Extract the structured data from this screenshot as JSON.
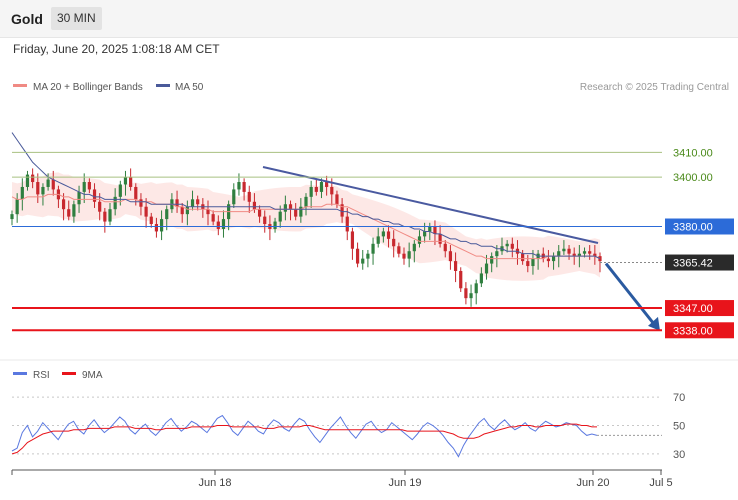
{
  "header": {
    "title": "Gold",
    "timeframe": "30 MIN",
    "datetime": "Friday, June 20, 2025 1:08:18 AM CET"
  },
  "legend": {
    "ma20_label": "MA 20 + Bollinger Bands",
    "ma50_label": "MA 50",
    "research_credit": "Research © 2025 Trading Central",
    "rsi_label": "RSI",
    "rsi_ma_label": "9MA"
  },
  "colors": {
    "candle_up": "#2f7f3f",
    "candle_down": "#c8282e",
    "ma20": "#f08a84",
    "ma50": "#4a5a9a",
    "bands_fill": "#fde4e2",
    "resistance": "#a8c080",
    "pivot": "#2c6bd8",
    "support": "#e8141b",
    "trendline": "#4a5aa0",
    "forecast_arrow": "#2a5aa0",
    "rsi": "#5a78e0",
    "rsi_ma": "#e8141b"
  },
  "chart_data": [
    {
      "type": "candlestick",
      "name": "Gold 30 MIN",
      "ylim": [
        3328,
        3432
      ],
      "x_ticks": [
        "Jun 18",
        "Jun 19",
        "Jun 20",
        "Jul 5"
      ],
      "levels": [
        {
          "label": "3410.00",
          "value": 3410.0,
          "kind": "resistance"
        },
        {
          "label": "3400.00",
          "value": 3400.0,
          "kind": "resistance"
        },
        {
          "label": "3380.00",
          "value": 3380.0,
          "kind": "pivot"
        },
        {
          "label": "3365.42",
          "value": 3365.42,
          "kind": "last_price"
        },
        {
          "label": "3347.00",
          "value": 3347.0,
          "kind": "support"
        },
        {
          "label": "3338.00",
          "value": 3338.0,
          "kind": "support"
        }
      ],
      "close_series": [
        3385,
        3391,
        3396,
        3401,
        3398,
        3393,
        3396,
        3399,
        3395,
        3391,
        3387,
        3384,
        3389,
        3394,
        3398,
        3395,
        3390,
        3386,
        3382,
        3387,
        3392,
        3397,
        3400,
        3396,
        3391,
        3388,
        3384,
        3381,
        3378,
        3383,
        3387,
        3391,
        3388,
        3385,
        3388,
        3391,
        3389,
        3387,
        3385,
        3382,
        3379,
        3383,
        3389,
        3395,
        3398,
        3394,
        3390,
        3387,
        3384,
        3381,
        3379,
        3382,
        3386,
        3389,
        3387,
        3384,
        3388,
        3392,
        3396,
        3394,
        3398,
        3396,
        3393,
        3389,
        3384,
        3378,
        3371,
        3365,
        3367,
        3369,
        3373,
        3376,
        3378,
        3375,
        3372,
        3369,
        3367,
        3370,
        3373,
        3376,
        3378,
        3380,
        3377,
        3373,
        3370,
        3366,
        3362,
        3355,
        3351,
        3353,
        3357,
        3361,
        3365,
        3368,
        3370,
        3372,
        3373,
        3371,
        3369,
        3366,
        3364,
        3367,
        3369,
        3367,
        3366,
        3368,
        3370,
        3371,
        3369,
        3368,
        3369,
        3370,
        3369,
        3368,
        3366
      ],
      "ma20_series": [
        3392,
        3391,
        3391,
        3392,
        3392,
        3392,
        3392,
        3393,
        3393,
        3393,
        3392,
        3392,
        3391,
        3391,
        3391,
        3391,
        3391,
        3391,
        3390,
        3390,
        3390,
        3390,
        3391,
        3391,
        3391,
        3390,
        3390,
        3390,
        3389,
        3389,
        3389,
        3389,
        3388,
        3388,
        3387,
        3387,
        3387,
        3387,
        3387,
        3386,
        3386,
        3386,
        3386,
        3386,
        3386,
        3386,
        3386,
        3387,
        3387,
        3387,
        3387,
        3387,
        3387,
        3387,
        3387,
        3387,
        3387,
        3388,
        3388,
        3388,
        3388,
        3389,
        3389,
        3389,
        3388,
        3388,
        3387,
        3386,
        3385,
        3384,
        3383,
        3382,
        3381,
        3380,
        3379,
        3378,
        3377,
        3376,
        3375,
        3374,
        3374,
        3374,
        3374,
        3374,
        3374,
        3373,
        3372,
        3371,
        3370,
        3369,
        3368,
        3368,
        3367,
        3367,
        3367,
        3367,
        3367,
        3367,
        3367,
        3367,
        3367,
        3367,
        3367,
        3367,
        3368,
        3368,
        3368,
        3368,
        3368,
        3368,
        3368,
        3368,
        3368,
        3368,
        3367
      ],
      "ma50_series": [
        3418,
        3415,
        3412,
        3409,
        3406,
        3404,
        3402,
        3400,
        3399,
        3398,
        3397,
        3396,
        3395,
        3394,
        3393,
        3393,
        3392,
        3392,
        3391,
        3391,
        3391,
        3391,
        3391,
        3390,
        3390,
        3390,
        3390,
        3389,
        3389,
        3389,
        3389,
        3389,
        3389,
        3389,
        3388,
        3388,
        3388,
        3388,
        3388,
        3388,
        3388,
        3388,
        3388,
        3388,
        3388,
        3388,
        3388,
        3388,
        3388,
        3388,
        3388,
        3387,
        3387,
        3387,
        3387,
        3387,
        3387,
        3387,
        3387,
        3387,
        3387,
        3387,
        3387,
        3387,
        3386,
        3386,
        3385,
        3385,
        3384,
        3384,
        3383,
        3383,
        3382,
        3382,
        3381,
        3381,
        3380,
        3380,
        3379,
        3379,
        3378,
        3378,
        3377,
        3377,
        3376,
        3375,
        3375,
        3374,
        3374,
        3373,
        3373,
        3372,
        3372,
        3372,
        3371,
        3371,
        3370,
        3370,
        3370,
        3369,
        3369,
        3369,
        3368,
        3368,
        3368,
        3368,
        3368,
        3368,
        3368,
        3368,
        3368,
        3368,
        3368,
        3368,
        3367
      ]
    },
    {
      "type": "line",
      "name": "RSI",
      "ylim": [
        20,
        80
      ],
      "y_ticks": [
        30,
        50,
        70
      ],
      "series": [
        {
          "name": "RSI",
          "values": [
            32,
            34,
            45,
            50,
            42,
            46,
            52,
            48,
            44,
            40,
            46,
            51,
            53,
            47,
            44,
            50,
            54,
            49,
            45,
            48,
            52,
            56,
            53,
            47,
            44,
            48,
            51,
            46,
            43,
            47,
            52,
            55,
            50,
            46,
            49,
            53,
            51,
            48,
            45,
            50,
            55,
            57,
            52,
            46,
            43,
            48,
            53,
            50,
            46,
            44,
            50,
            54,
            52,
            48,
            46,
            51,
            55,
            53,
            47,
            42,
            38,
            43,
            48,
            52,
            56,
            50,
            45,
            41,
            46,
            51,
            53,
            48,
            45,
            47,
            52,
            49,
            46,
            43,
            40,
            44,
            49,
            52,
            50,
            47,
            43,
            38,
            34,
            28,
            36,
            42,
            47,
            52,
            55,
            50,
            47,
            51,
            54,
            50,
            47,
            49,
            52,
            48,
            46,
            50,
            53,
            51,
            49,
            50,
            52,
            51,
            50,
            46,
            43,
            44,
            43
          ]
        },
        {
          "name": "9MA",
          "values": [
            30,
            31,
            34,
            38,
            40,
            42,
            44,
            45,
            46,
            46,
            46,
            46,
            47,
            47,
            47,
            48,
            48,
            48,
            48,
            48,
            49,
            49,
            49,
            49,
            48,
            48,
            48,
            48,
            47,
            47,
            48,
            48,
            48,
            48,
            48,
            49,
            49,
            49,
            49,
            49,
            50,
            50,
            50,
            49,
            49,
            49,
            49,
            49,
            49,
            48,
            48,
            48,
            49,
            49,
            49,
            49,
            49,
            50,
            50,
            49,
            48,
            47,
            47,
            47,
            47,
            47,
            47,
            47,
            47,
            47,
            47,
            47,
            47,
            47,
            47,
            47,
            47,
            46,
            46,
            46,
            46,
            46,
            46,
            46,
            46,
            45,
            44,
            42,
            41,
            41,
            41,
            42,
            44,
            45,
            46,
            47,
            48,
            49,
            49,
            50,
            50,
            50,
            49,
            49,
            50,
            50,
            50,
            50,
            51,
            51,
            51,
            50,
            50,
            49,
            49
          ]
        }
      ]
    }
  ]
}
